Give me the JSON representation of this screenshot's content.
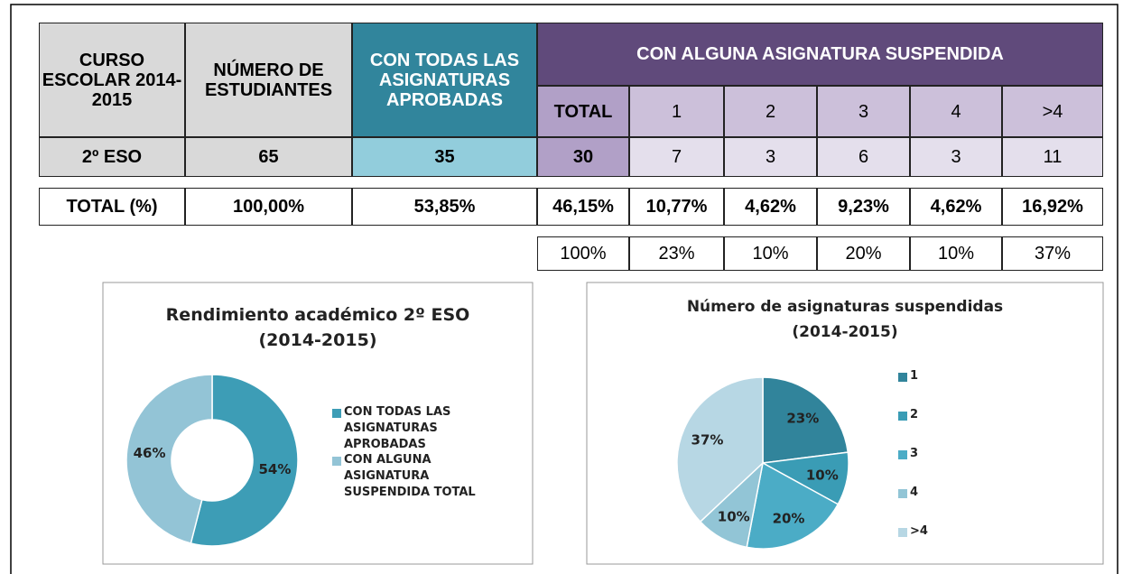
{
  "table": {
    "head": {
      "course": "CURSO ESCOLAR 2014-2015",
      "students": "NÚMERO DE ESTUDIANTES",
      "passed": "CON TODAS LAS ASIGNATURAS APROBADAS",
      "failed": "CON ALGUNA ASIGNATURA SUSPENDIDA",
      "failed_cols": [
        "TOTAL",
        "1",
        "2",
        "3",
        "4",
        ">4"
      ]
    },
    "rows": [
      [
        "2º ESO",
        "65",
        "35",
        "30",
        "7",
        "3",
        "6",
        "3",
        "11"
      ],
      [
        "TOTAL (%)",
        "100,00%",
        "53,85%",
        "46,15%",
        "10,77%",
        "4,62%",
        "9,23%",
        "4,62%",
        "16,92%"
      ]
    ],
    "shares": [
      "100%",
      "23%",
      "10%",
      "20%",
      "10%",
      "37%"
    ]
  },
  "charts": [
    {
      "type": "donut",
      "title": [
        "Rendimiento académico 2º ESO",
        "(2014-2015)"
      ],
      "categories": [
        "CON TODAS LAS ASIGNATURAS APROBADAS",
        "CON ALGUNA ASIGNATURA SUSPENDIDA TOTAL"
      ],
      "values": [
        54,
        46
      ],
      "value_labels": [
        "54%",
        "46%"
      ],
      "colors": [
        "#3d9db6",
        "#93c4d6"
      ]
    },
    {
      "type": "pie",
      "title": [
        "Número de asignaturas suspendidas",
        "(2014-2015)"
      ],
      "categories": [
        "1",
        "2",
        "3",
        "4",
        ">4"
      ],
      "values": [
        23,
        10,
        20,
        10,
        37
      ],
      "value_labels": [
        "23%",
        "10%",
        "20%",
        "10%",
        "37%"
      ],
      "colors": [
        "#31849b",
        "#3a9cb5",
        "#4bacc6",
        "#92c5d6",
        "#b7d7e4"
      ]
    }
  ]
}
